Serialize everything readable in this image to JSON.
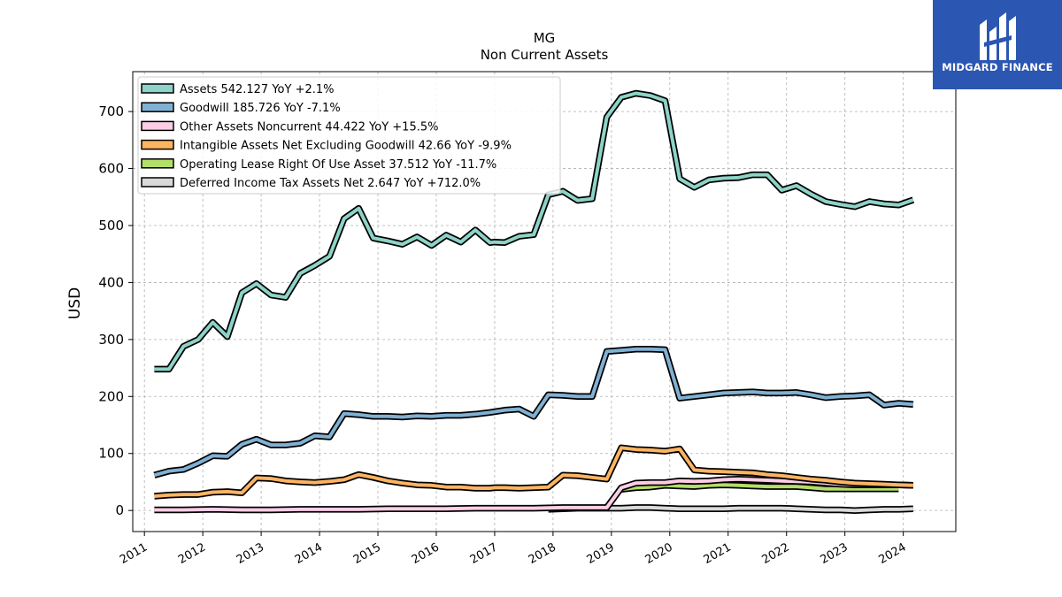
{
  "brand": {
    "name": "MIDGARD FINANCE",
    "color": "#2b56b2"
  },
  "chart_data": {
    "type": "line",
    "title": "MG",
    "subtitle": "Non Current  Assets",
    "xlabel": "",
    "ylabel": "USD",
    "ylim": [
      -37,
      770
    ],
    "xlim": [
      2010.8,
      2024.9
    ],
    "yticks": [
      0,
      100,
      200,
      300,
      400,
      500,
      600,
      700
    ],
    "xticks": [
      2011,
      2012,
      2013,
      2014,
      2015,
      2016,
      2017,
      2018,
      2019,
      2020,
      2021,
      2022,
      2023,
      2024
    ],
    "grid": true,
    "legend_position": "top-left",
    "series": [
      {
        "name": "Assets  542.127 YoY +2.1%",
        "color": "#8dd3c7",
        "x": [
          2011.17,
          2011.42,
          2011.67,
          2011.92,
          2012.17,
          2012.42,
          2012.67,
          2012.92,
          2013.17,
          2013.42,
          2013.67,
          2013.92,
          2014.17,
          2014.42,
          2014.67,
          2014.92,
          2015.17,
          2015.42,
          2015.67,
          2015.92,
          2016.17,
          2016.42,
          2016.67,
          2016.92,
          2017.0,
          2017.17,
          2017.42,
          2017.67,
          2017.92,
          2018.17,
          2018.42,
          2018.67,
          2018.92,
          2019.17,
          2019.42,
          2019.67,
          2019.92,
          2020.17,
          2020.42,
          2020.67,
          2020.92,
          2021.17,
          2021.42,
          2021.67,
          2021.92,
          2022.17,
          2022.42,
          2022.67,
          2022.92,
          2023.17,
          2023.42,
          2023.67,
          2023.92,
          2024.17
        ],
        "values": [
          248,
          248,
          288,
          300,
          330,
          305,
          382,
          398,
          378,
          374,
          416,
          430,
          446,
          512,
          530,
          478,
          473,
          467,
          480,
          465,
          483,
          471,
          492,
          470,
          471,
          470,
          481,
          484,
          554,
          560,
          544,
          547,
          690,
          725,
          732,
          728,
          719,
          582,
          567,
          580,
          583,
          584,
          589,
          589,
          562,
          570,
          555,
          542,
          537,
          533,
          542,
          538,
          536,
          545
        ]
      },
      {
        "name": "Goodwill  185.726 YoY -7.1%",
        "color": "#80b1d3",
        "x": [
          2011.17,
          2011.42,
          2011.67,
          2011.92,
          2012.17,
          2012.42,
          2012.67,
          2012.92,
          2013.17,
          2013.42,
          2013.67,
          2013.92,
          2014.17,
          2014.42,
          2014.67,
          2014.92,
          2015.17,
          2015.42,
          2015.67,
          2015.92,
          2016.17,
          2016.42,
          2016.67,
          2016.92,
          2017.17,
          2017.42,
          2017.67,
          2017.92,
          2018.17,
          2018.42,
          2018.67,
          2018.92,
          2019.17,
          2019.42,
          2019.67,
          2019.92,
          2020.17,
          2020.42,
          2020.67,
          2020.92,
          2021.17,
          2021.42,
          2021.67,
          2021.92,
          2022.17,
          2022.42,
          2022.67,
          2022.92,
          2023.17,
          2023.42,
          2023.67,
          2023.92,
          2024.17
        ],
        "values": [
          62,
          69,
          72,
          83,
          96,
          95,
          116,
          125,
          115,
          115,
          118,
          131,
          129,
          170,
          168,
          165,
          165,
          164,
          166,
          165,
          167,
          167,
          169,
          172,
          176,
          178,
          165,
          203,
          202,
          200,
          200,
          279,
          281,
          283,
          283,
          282,
          197,
          200,
          203,
          206,
          207,
          208,
          206,
          206,
          207,
          203,
          198,
          200,
          201,
          203,
          185,
          188,
          186
        ]
      },
      {
        "name": "Other Assets Noncurrent  44.422 YoY +15.5%",
        "color": "#fccde5",
        "x": [
          2011.17,
          2011.67,
          2012.17,
          2012.67,
          2013.17,
          2013.67,
          2014.17,
          2014.67,
          2015.17,
          2015.67,
          2016.17,
          2016.67,
          2017.17,
          2017.67,
          2018.17,
          2018.67,
          2018.92,
          2019.17,
          2019.42,
          2019.67,
          2019.92,
          2020.17,
          2020.42,
          2020.67,
          2020.92,
          2021.17,
          2021.42,
          2021.67,
          2021.92,
          2022.17,
          2022.42,
          2022.67,
          2022.92,
          2023.17,
          2023.42,
          2023.67,
          2023.92,
          2024.17
        ],
        "values": [
          1,
          1,
          2,
          1,
          1,
          2,
          2,
          2,
          3,
          3,
          3,
          4,
          4,
          4,
          5,
          5,
          5,
          40,
          48,
          49,
          49,
          52,
          51,
          52,
          54,
          55,
          54,
          53,
          52,
          51,
          50,
          48,
          46,
          45,
          45,
          45,
          45,
          44
        ]
      },
      {
        "name": "Intangible Assets Net Excluding Goodwill  42.66 YoY -9.9%",
        "color": "#fdb462",
        "x": [
          2011.17,
          2011.42,
          2011.67,
          2011.92,
          2012.17,
          2012.42,
          2012.67,
          2012.92,
          2013.17,
          2013.42,
          2013.67,
          2013.92,
          2014.17,
          2014.42,
          2014.67,
          2014.92,
          2015.17,
          2015.42,
          2015.67,
          2015.92,
          2016.17,
          2016.42,
          2016.67,
          2016.92,
          2017.0,
          2017.17,
          2017.42,
          2017.67,
          2017.92,
          2018.17,
          2018.42,
          2018.67,
          2018.92,
          2019.17,
          2019.42,
          2019.67,
          2019.92,
          2020.17,
          2020.42,
          2020.67,
          2020.92,
          2021.17,
          2021.42,
          2021.67,
          2021.92,
          2022.17,
          2022.42,
          2022.67,
          2022.92,
          2023.17,
          2023.42,
          2023.67,
          2023.92,
          2024.17
        ],
        "values": [
          25,
          27,
          28,
          28,
          32,
          33,
          31,
          57,
          56,
          52,
          50,
          49,
          51,
          54,
          63,
          58,
          52,
          48,
          45,
          44,
          41,
          41,
          39,
          39,
          40,
          40,
          39,
          40,
          41,
          62,
          61,
          58,
          55,
          110,
          107,
          106,
          104,
          108,
          71,
          69,
          68,
          67,
          66,
          63,
          61,
          58,
          55,
          53,
          50,
          48,
          47,
          46,
          45,
          44
        ]
      },
      {
        "name": "Operating Lease Right Of Use Asset  37.512 YoY -11.7%",
        "color": "#b3de69",
        "x": [
          2019.17,
          2019.42,
          2019.67,
          2019.92,
          2020.17,
          2020.42,
          2020.67,
          2020.92,
          2021.17,
          2021.42,
          2021.67,
          2021.92,
          2022.17,
          2022.42,
          2022.67,
          2022.92,
          2023.17,
          2023.42,
          2023.67,
          2023.92
        ],
        "values": [
          37,
          40,
          41,
          44,
          43,
          42,
          44,
          45,
          44,
          43,
          42,
          42,
          42,
          40,
          38,
          38,
          38,
          38,
          38,
          38
        ]
      },
      {
        "name": "Deferred Income Tax Assets Net  2.647 YoY +712.0%",
        "color": "#d9d9d9",
        "x": [
          2017.92,
          2018.17,
          2018.42,
          2018.67,
          2018.92,
          2019.17,
          2019.42,
          2019.67,
          2019.92,
          2020.17,
          2020.42,
          2020.67,
          2020.92,
          2021.17,
          2021.42,
          2021.67,
          2021.92,
          2022.17,
          2022.42,
          2022.67,
          2022.92,
          2023.17,
          2023.42,
          2023.67,
          2023.92,
          2024.17
        ],
        "values": [
          2,
          3,
          4,
          4,
          4,
          4,
          5,
          5,
          4,
          3,
          3,
          3,
          3,
          4,
          4,
          4,
          4,
          3,
          2,
          1,
          1,
          0,
          1,
          2,
          2,
          3
        ]
      }
    ]
  }
}
